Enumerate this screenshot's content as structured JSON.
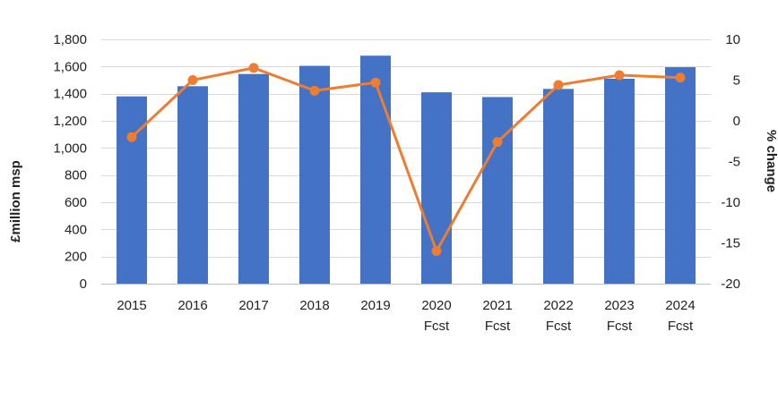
{
  "chart_data": {
    "type": "bar",
    "categories": [
      [
        "2015"
      ],
      [
        "2016"
      ],
      [
        "2017"
      ],
      [
        "2018"
      ],
      [
        "2019"
      ],
      [
        "2020",
        "Fcst"
      ],
      [
        "2021",
        "Fcst"
      ],
      [
        "2022",
        "Fcst"
      ],
      [
        "2023",
        "Fcst"
      ],
      [
        "2024",
        "Fcst"
      ]
    ],
    "bar_series": {
      "values": [
        1380,
        1455,
        1545,
        1605,
        1680,
        1410,
        1375,
        1435,
        1510,
        1595
      ],
      "color": "#4472C4",
      "axis": "left"
    },
    "line_series": {
      "values": [
        -2,
        5,
        6.5,
        3.7,
        4.7,
        -16,
        -2.6,
        4.4,
        5.6,
        5.3
      ],
      "color": "#ED7D31",
      "axis": "right"
    },
    "left_axis": {
      "label": "£million msp",
      "ylim": [
        0,
        1800
      ],
      "ticks": [
        "0",
        "200",
        "400",
        "600",
        "800",
        "1,000",
        "1,200",
        "1,400",
        "1,600",
        "1,800"
      ]
    },
    "right_axis": {
      "label": "% change",
      "ylim": [
        -20,
        10
      ],
      "ticks": [
        "-20",
        "-15",
        "-10",
        "-5",
        "0",
        "5",
        "10"
      ]
    },
    "grid": true,
    "legend": false
  }
}
